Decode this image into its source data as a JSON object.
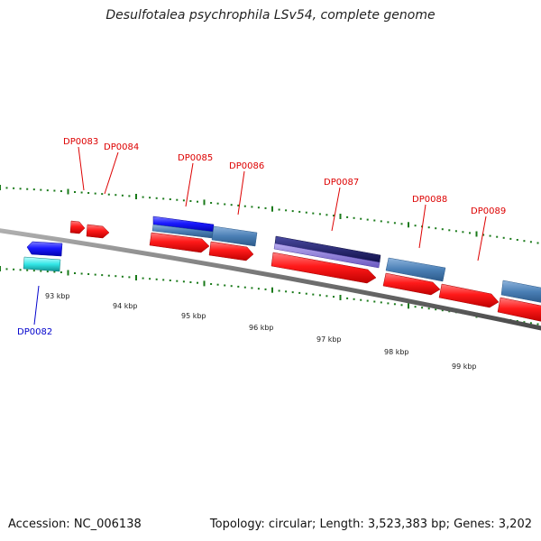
{
  "header": {
    "title": "Desulfotalea psychrophila LSv54, complete genome"
  },
  "footer": {
    "accession": "Accession: NC_006138",
    "summary": "Topology: circular; Length: 3,523,383 bp; Genes: 3,202"
  },
  "ruler_labels": [
    "93 kbp",
    "94 kbp",
    "95 kbp",
    "96 kbp",
    "97 kbp",
    "98 kbp",
    "99 kbp"
  ],
  "genes": [
    {
      "id": "DP0082",
      "label_color": "#0000cc"
    },
    {
      "id": "DP0083",
      "label_color": "#dd0000"
    },
    {
      "id": "DP0084",
      "label_color": "#dd0000"
    },
    {
      "id": "DP0085",
      "label_color": "#dd0000"
    },
    {
      "id": "DP0086",
      "label_color": "#dd0000"
    },
    {
      "id": "DP0087",
      "label_color": "#dd0000"
    },
    {
      "id": "DP0088",
      "label_color": "#dd0000"
    },
    {
      "id": "DP0089",
      "label_color": "#dd0000"
    }
  ],
  "colors": {
    "forward_cds": "#ff1a1a",
    "reverse_cds": "#1a1aff",
    "reverse_rna": "#33e6e6",
    "feature_steel": "#4a7fb5",
    "feature_navy": "#1a1a66",
    "feature_lavender": "#8878d8",
    "backbone": "#808080",
    "tick": "#1a7a1a"
  }
}
